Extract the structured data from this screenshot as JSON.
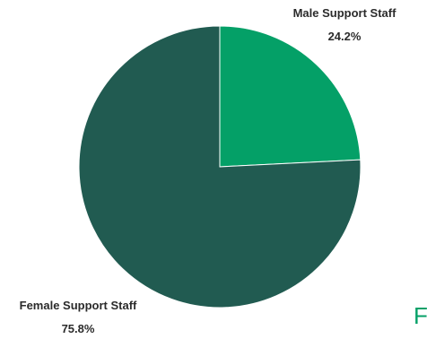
{
  "chart_data": {
    "type": "pie",
    "title": "",
    "slices": [
      {
        "label": "Male Support Staff",
        "value": 24.2,
        "value_label": "24.2%",
        "color": "#04a067"
      },
      {
        "label": "Female Support Staff",
        "value": 75.8,
        "value_label": "75.8%",
        "color": "#215b51"
      }
    ],
    "start_angle_deg": 0,
    "direction": "clockwise",
    "legend": "none"
  },
  "partial_text": "F",
  "partial_text_color": "#04a067"
}
